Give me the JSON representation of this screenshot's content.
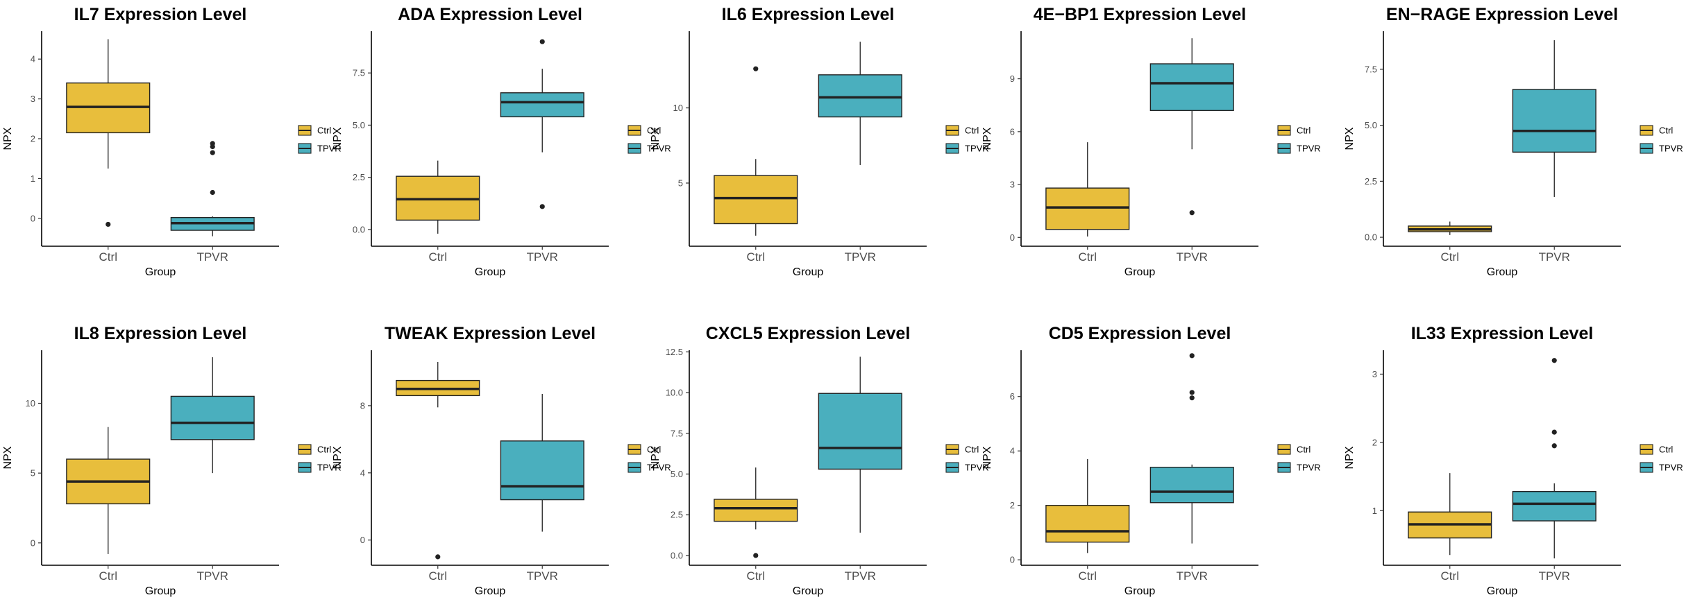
{
  "colors": {
    "Ctrl": "#E8BE3C",
    "TPVR": "#4AAFBE",
    "outline": "#222222",
    "median": "#222222"
  },
  "chart_data": [
    {
      "type": "box",
      "title": "IL7 Expression Level",
      "xlabel": "Group",
      "ylabel": "NPX",
      "categories": [
        "Ctrl",
        "TPVR"
      ],
      "legend": [
        "Ctrl",
        "TPVR"
      ],
      "ylim": [
        -0.7,
        4.7
      ],
      "yticks": [
        0,
        1,
        2,
        3,
        4
      ],
      "ytick_labels": [
        "0",
        "1",
        "2",
        "3",
        "4"
      ],
      "boxes": [
        {
          "group": "Ctrl",
          "q1": 2.15,
          "median": 2.8,
          "q3": 3.4,
          "whisker_low": 1.25,
          "whisker_high": 4.5,
          "outliers": [
            -0.15
          ]
        },
        {
          "group": "TPVR",
          "q1": -0.3,
          "median": -0.12,
          "q3": 0.02,
          "whisker_low": -0.45,
          "whisker_high": 0.05,
          "outliers": [
            0.65,
            1.65,
            1.8,
            1.88
          ]
        }
      ]
    },
    {
      "type": "box",
      "title": "ADA Expression Level",
      "xlabel": "Group",
      "ylabel": "NPX",
      "categories": [
        "Ctrl",
        "TPVR"
      ],
      "legend": [
        "Ctrl",
        "TPVR"
      ],
      "ylim": [
        -0.8,
        9.5
      ],
      "yticks": [
        0,
        2.5,
        5,
        7.5
      ],
      "ytick_labels": [
        "0.0",
        "2.5",
        "5.0",
        "7.5"
      ],
      "boxes": [
        {
          "group": "Ctrl",
          "q1": 0.45,
          "median": 1.45,
          "q3": 2.55,
          "whisker_low": -0.2,
          "whisker_high": 3.3,
          "outliers": []
        },
        {
          "group": "TPVR",
          "q1": 5.4,
          "median": 6.1,
          "q3": 6.55,
          "whisker_low": 3.7,
          "whisker_high": 7.7,
          "outliers": [
            1.1,
            9.0
          ]
        }
      ]
    },
    {
      "type": "box",
      "title": "IL6 Expression Level",
      "xlabel": "Group",
      "ylabel": "NPX",
      "categories": [
        "Ctrl",
        "TPVR"
      ],
      "legend": [
        "Ctrl",
        "TPVR"
      ],
      "ylim": [
        0.8,
        15.1
      ],
      "yticks": [
        5,
        10
      ],
      "ytick_labels": [
        "5",
        "10"
      ],
      "boxes": [
        {
          "group": "Ctrl",
          "q1": 2.3,
          "median": 4.0,
          "q3": 5.5,
          "whisker_low": 1.5,
          "whisker_high": 6.6,
          "outliers": [
            12.6
          ]
        },
        {
          "group": "TPVR",
          "q1": 9.4,
          "median": 10.7,
          "q3": 12.2,
          "whisker_low": 6.2,
          "whisker_high": 14.4,
          "outliers": []
        }
      ]
    },
    {
      "type": "box",
      "title": "4E−BP1 Expression Level",
      "xlabel": "Group",
      "ylabel": "NPX",
      "categories": [
        "Ctrl",
        "TPVR"
      ],
      "legend": [
        "Ctrl",
        "TPVR"
      ],
      "ylim": [
        -0.5,
        11.7
      ],
      "yticks": [
        0,
        3,
        6,
        9
      ],
      "ytick_labels": [
        "0",
        "3",
        "6",
        "9"
      ],
      "boxes": [
        {
          "group": "Ctrl",
          "q1": 0.45,
          "median": 1.7,
          "q3": 2.8,
          "whisker_low": 0.05,
          "whisker_high": 5.4,
          "outliers": []
        },
        {
          "group": "TPVR",
          "q1": 7.2,
          "median": 8.75,
          "q3": 9.85,
          "whisker_low": 5.0,
          "whisker_high": 11.3,
          "outliers": [
            1.4
          ]
        }
      ]
    },
    {
      "type": "box",
      "title": "EN−RAGE Expression Level",
      "xlabel": "Group",
      "ylabel": "NPX",
      "categories": [
        "Ctrl",
        "TPVR"
      ],
      "legend": [
        "Ctrl",
        "TPVR"
      ],
      "ylim": [
        -0.4,
        9.2
      ],
      "yticks": [
        0,
        2.5,
        5,
        7.5
      ],
      "ytick_labels": [
        "0.0",
        "2.5",
        "5.0",
        "7.5"
      ],
      "boxes": [
        {
          "group": "Ctrl",
          "q1": 0.25,
          "median": 0.35,
          "q3": 0.5,
          "whisker_low": 0.1,
          "whisker_high": 0.7,
          "outliers": []
        },
        {
          "group": "TPVR",
          "q1": 3.8,
          "median": 4.75,
          "q3": 6.6,
          "whisker_low": 1.8,
          "whisker_high": 8.8,
          "outliers": []
        }
      ]
    },
    {
      "type": "box",
      "title": "IL8 Expression Level",
      "xlabel": "Group",
      "ylabel": "NPX",
      "categories": [
        "Ctrl",
        "TPVR"
      ],
      "legend": [
        "Ctrl",
        "TPVR"
      ],
      "ylim": [
        -1.6,
        13.8
      ],
      "yticks": [
        0,
        5,
        10
      ],
      "ytick_labels": [
        "0",
        "5",
        "10"
      ],
      "boxes": [
        {
          "group": "Ctrl",
          "q1": 2.8,
          "median": 4.4,
          "q3": 6.0,
          "whisker_low": -0.8,
          "whisker_high": 8.3,
          "outliers": []
        },
        {
          "group": "TPVR",
          "q1": 7.4,
          "median": 8.6,
          "q3": 10.5,
          "whisker_low": 5.0,
          "whisker_high": 13.3,
          "outliers": []
        }
      ]
    },
    {
      "type": "box",
      "title": "TWEAK Expression Level",
      "xlabel": "Group",
      "ylabel": "NPX",
      "categories": [
        "Ctrl",
        "TPVR"
      ],
      "legend": [
        "Ctrl",
        "TPVR"
      ],
      "ylim": [
        -1.5,
        11.3
      ],
      "yticks": [
        0,
        4,
        8
      ],
      "ytick_labels": [
        "0",
        "4",
        "8"
      ],
      "boxes": [
        {
          "group": "Ctrl",
          "q1": 8.6,
          "median": 9.0,
          "q3": 9.5,
          "whisker_low": 7.9,
          "whisker_high": 10.6,
          "outliers": [
            -1.0
          ]
        },
        {
          "group": "TPVR",
          "q1": 2.4,
          "median": 3.2,
          "q3": 5.9,
          "whisker_low": 0.5,
          "whisker_high": 8.7,
          "outliers": []
        }
      ]
    },
    {
      "type": "box",
      "title": "CXCL5 Expression Level",
      "xlabel": "Group",
      "ylabel": "NPX",
      "categories": [
        "Ctrl",
        "TPVR"
      ],
      "legend": [
        "Ctrl",
        "TPVR"
      ],
      "ylim": [
        -0.6,
        12.6
      ],
      "yticks": [
        0,
        2.5,
        5,
        7.5,
        10,
        12.5
      ],
      "ytick_labels": [
        "0.0",
        "2.5",
        "5.0",
        "7.5",
        "10.0",
        "12.5"
      ],
      "boxes": [
        {
          "group": "Ctrl",
          "q1": 2.1,
          "median": 2.9,
          "q3": 3.45,
          "whisker_low": 1.6,
          "whisker_high": 5.4,
          "outliers": [
            0.0
          ]
        },
        {
          "group": "TPVR",
          "q1": 5.3,
          "median": 6.6,
          "q3": 9.95,
          "whisker_low": 1.4,
          "whisker_high": 12.2,
          "outliers": []
        }
      ]
    },
    {
      "type": "box",
      "title": "CD5 Expression Level",
      "xlabel": "Group",
      "ylabel": "NPX",
      "categories": [
        "Ctrl",
        "TPVR"
      ],
      "legend": [
        "Ctrl",
        "TPVR"
      ],
      "ylim": [
        -0.2,
        7.7
      ],
      "yticks": [
        0,
        2,
        4,
        6
      ],
      "ytick_labels": [
        "0",
        "2",
        "4",
        "6"
      ],
      "boxes": [
        {
          "group": "Ctrl",
          "q1": 0.65,
          "median": 1.05,
          "q3": 2.0,
          "whisker_low": 0.25,
          "whisker_high": 3.7,
          "outliers": []
        },
        {
          "group": "TPVR",
          "q1": 2.1,
          "median": 2.5,
          "q3": 3.4,
          "whisker_low": 0.6,
          "whisker_high": 3.5,
          "outliers": [
            5.95,
            6.15,
            7.5
          ]
        }
      ]
    },
    {
      "type": "box",
      "title": "IL33 Expression Level",
      "xlabel": "Group",
      "ylabel": "NPX",
      "categories": [
        "Ctrl",
        "TPVR"
      ],
      "legend": [
        "Ctrl",
        "TPVR"
      ],
      "ylim": [
        0.2,
        3.35
      ],
      "yticks": [
        1,
        2,
        3
      ],
      "ytick_labels": [
        "1",
        "2",
        "3"
      ],
      "boxes": [
        {
          "group": "Ctrl",
          "q1": 0.6,
          "median": 0.8,
          "q3": 0.98,
          "whisker_low": 0.35,
          "whisker_high": 1.55,
          "outliers": []
        },
        {
          "group": "TPVR",
          "q1": 0.85,
          "median": 1.1,
          "q3": 1.28,
          "whisker_low": 0.3,
          "whisker_high": 1.4,
          "outliers": [
            1.95,
            2.15,
            3.2
          ]
        }
      ]
    }
  ]
}
